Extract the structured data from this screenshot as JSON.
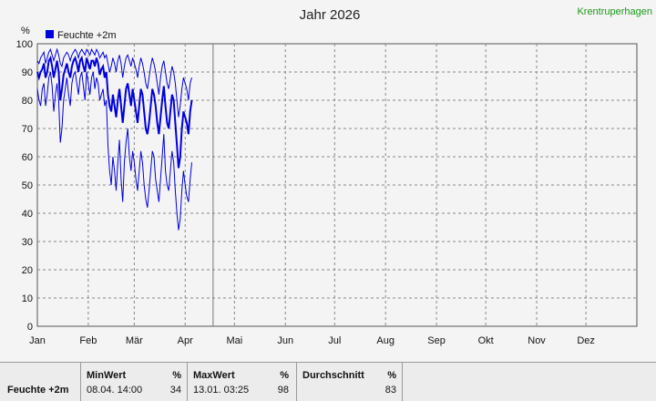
{
  "chart_data": {
    "type": "line",
    "title": "Jahr 2026",
    "station": "Krentruperhagen",
    "ylabel": "%",
    "ylim": [
      0,
      100
    ],
    "yticks": [
      0,
      10,
      20,
      30,
      40,
      50,
      60,
      70,
      80,
      90,
      100
    ],
    "xlabels": [
      "Jan",
      "Feb",
      "Mär",
      "Apr",
      "Mai",
      "Jun",
      "Jul",
      "Aug",
      "Sep",
      "Okt",
      "Nov",
      "Dez"
    ],
    "grid": true,
    "legend_position": "top-left",
    "current_day": 108,
    "series": [
      {
        "name": "Feuchte +2m",
        "color": "#0000dd",
        "values": [
          [
            1,
            94,
            84,
            90
          ],
          [
            2,
            93,
            80,
            88
          ],
          [
            3,
            95,
            78,
            90
          ],
          [
            4,
            96,
            84,
            91
          ],
          [
            5,
            97,
            86,
            93
          ],
          [
            6,
            93,
            78,
            88
          ],
          [
            7,
            95,
            82,
            90
          ],
          [
            8,
            97,
            88,
            94
          ],
          [
            9,
            98,
            90,
            95
          ],
          [
            10,
            96,
            85,
            92
          ],
          [
            11,
            94,
            76,
            88
          ],
          [
            12,
            96,
            82,
            91
          ],
          [
            13,
            98,
            86,
            94
          ],
          [
            14,
            96,
            80,
            90
          ],
          [
            15,
            93,
            65,
            80
          ],
          [
            16,
            92,
            70,
            84
          ],
          [
            17,
            95,
            80,
            89
          ],
          [
            18,
            96,
            84,
            91
          ],
          [
            19,
            97,
            88,
            93
          ],
          [
            20,
            96,
            82,
            90
          ],
          [
            21,
            94,
            78,
            88
          ],
          [
            22,
            96,
            86,
            92
          ],
          [
            23,
            97,
            89,
            94
          ],
          [
            24,
            98,
            90,
            95
          ],
          [
            25,
            97,
            86,
            93
          ],
          [
            26,
            95,
            82,
            90
          ],
          [
            27,
            97,
            88,
            94
          ],
          [
            28,
            98,
            90,
            95
          ],
          [
            29,
            97,
            85,
            92
          ],
          [
            30,
            96,
            80,
            90
          ],
          [
            31,
            98,
            90,
            95
          ],
          [
            32,
            97,
            86,
            93
          ],
          [
            33,
            96,
            82,
            91
          ],
          [
            34,
            98,
            88,
            94
          ],
          [
            35,
            97,
            90,
            94
          ],
          [
            36,
            96,
            84,
            92
          ],
          [
            37,
            98,
            88,
            95
          ],
          [
            38,
            97,
            86,
            93
          ],
          [
            39,
            95,
            80,
            89
          ],
          [
            40,
            96,
            82,
            91
          ],
          [
            41,
            97,
            84,
            92
          ],
          [
            42,
            95,
            78,
            88
          ],
          [
            43,
            96,
            80,
            90
          ],
          [
            44,
            93,
            64,
            82
          ],
          [
            45,
            90,
            55,
            78
          ],
          [
            46,
            92,
            50,
            76
          ],
          [
            47,
            95,
            60,
            82
          ],
          [
            48,
            93,
            55,
            78
          ],
          [
            49,
            90,
            48,
            74
          ],
          [
            50,
            94,
            58,
            80
          ],
          [
            51,
            96,
            66,
            84
          ],
          [
            52,
            93,
            52,
            78
          ],
          [
            53,
            88,
            44,
            72
          ],
          [
            54,
            92,
            58,
            78
          ],
          [
            55,
            95,
            65,
            84
          ],
          [
            56,
            96,
            70,
            86
          ],
          [
            57,
            94,
            60,
            82
          ],
          [
            58,
            92,
            55,
            78
          ],
          [
            59,
            95,
            62,
            84
          ],
          [
            60,
            93,
            58,
            80
          ],
          [
            61,
            91,
            52,
            76
          ],
          [
            62,
            88,
            48,
            72
          ],
          [
            63,
            92,
            55,
            78
          ],
          [
            64,
            95,
            62,
            84
          ],
          [
            65,
            93,
            58,
            82
          ],
          [
            66,
            90,
            50,
            76
          ],
          [
            67,
            86,
            45,
            70
          ],
          [
            68,
            84,
            42,
            68
          ],
          [
            69,
            88,
            48,
            72
          ],
          [
            70,
            92,
            55,
            78
          ],
          [
            71,
            95,
            62,
            84
          ],
          [
            72,
            93,
            60,
            82
          ],
          [
            73,
            90,
            52,
            78
          ],
          [
            74,
            86,
            48,
            72
          ],
          [
            75,
            82,
            44,
            68
          ],
          [
            76,
            88,
            52,
            74
          ],
          [
            77,
            92,
            60,
            80
          ],
          [
            78,
            94,
            68,
            85
          ],
          [
            79,
            90,
            55,
            78
          ],
          [
            80,
            86,
            50,
            72
          ],
          [
            81,
            84,
            48,
            70
          ],
          [
            82,
            88,
            55,
            76
          ],
          [
            83,
            92,
            62,
            82
          ],
          [
            84,
            90,
            58,
            80
          ],
          [
            85,
            86,
            48,
            72
          ],
          [
            86,
            80,
            40,
            64
          ],
          [
            87,
            74,
            34,
            56
          ],
          [
            88,
            78,
            38,
            60
          ],
          [
            89,
            84,
            48,
            70
          ],
          [
            90,
            88,
            55,
            76
          ],
          [
            91,
            86,
            50,
            74
          ],
          [
            92,
            84,
            46,
            72
          ],
          [
            93,
            80,
            44,
            68
          ],
          [
            94,
            86,
            52,
            76
          ],
          [
            95,
            88,
            58,
            80
          ]
        ]
      }
    ]
  },
  "legend": {
    "label": "Feuchte +2m"
  },
  "stats": {
    "row_label": "Feuchte +2m",
    "unit": "%",
    "min": {
      "header": "MinWert",
      "when": "08.04.  14:00",
      "value": "34"
    },
    "max": {
      "header": "MaxWert",
      "when": "13.01.  03:25",
      "value": "98"
    },
    "avg": {
      "header": "Durchschnitt",
      "value": "83"
    }
  }
}
